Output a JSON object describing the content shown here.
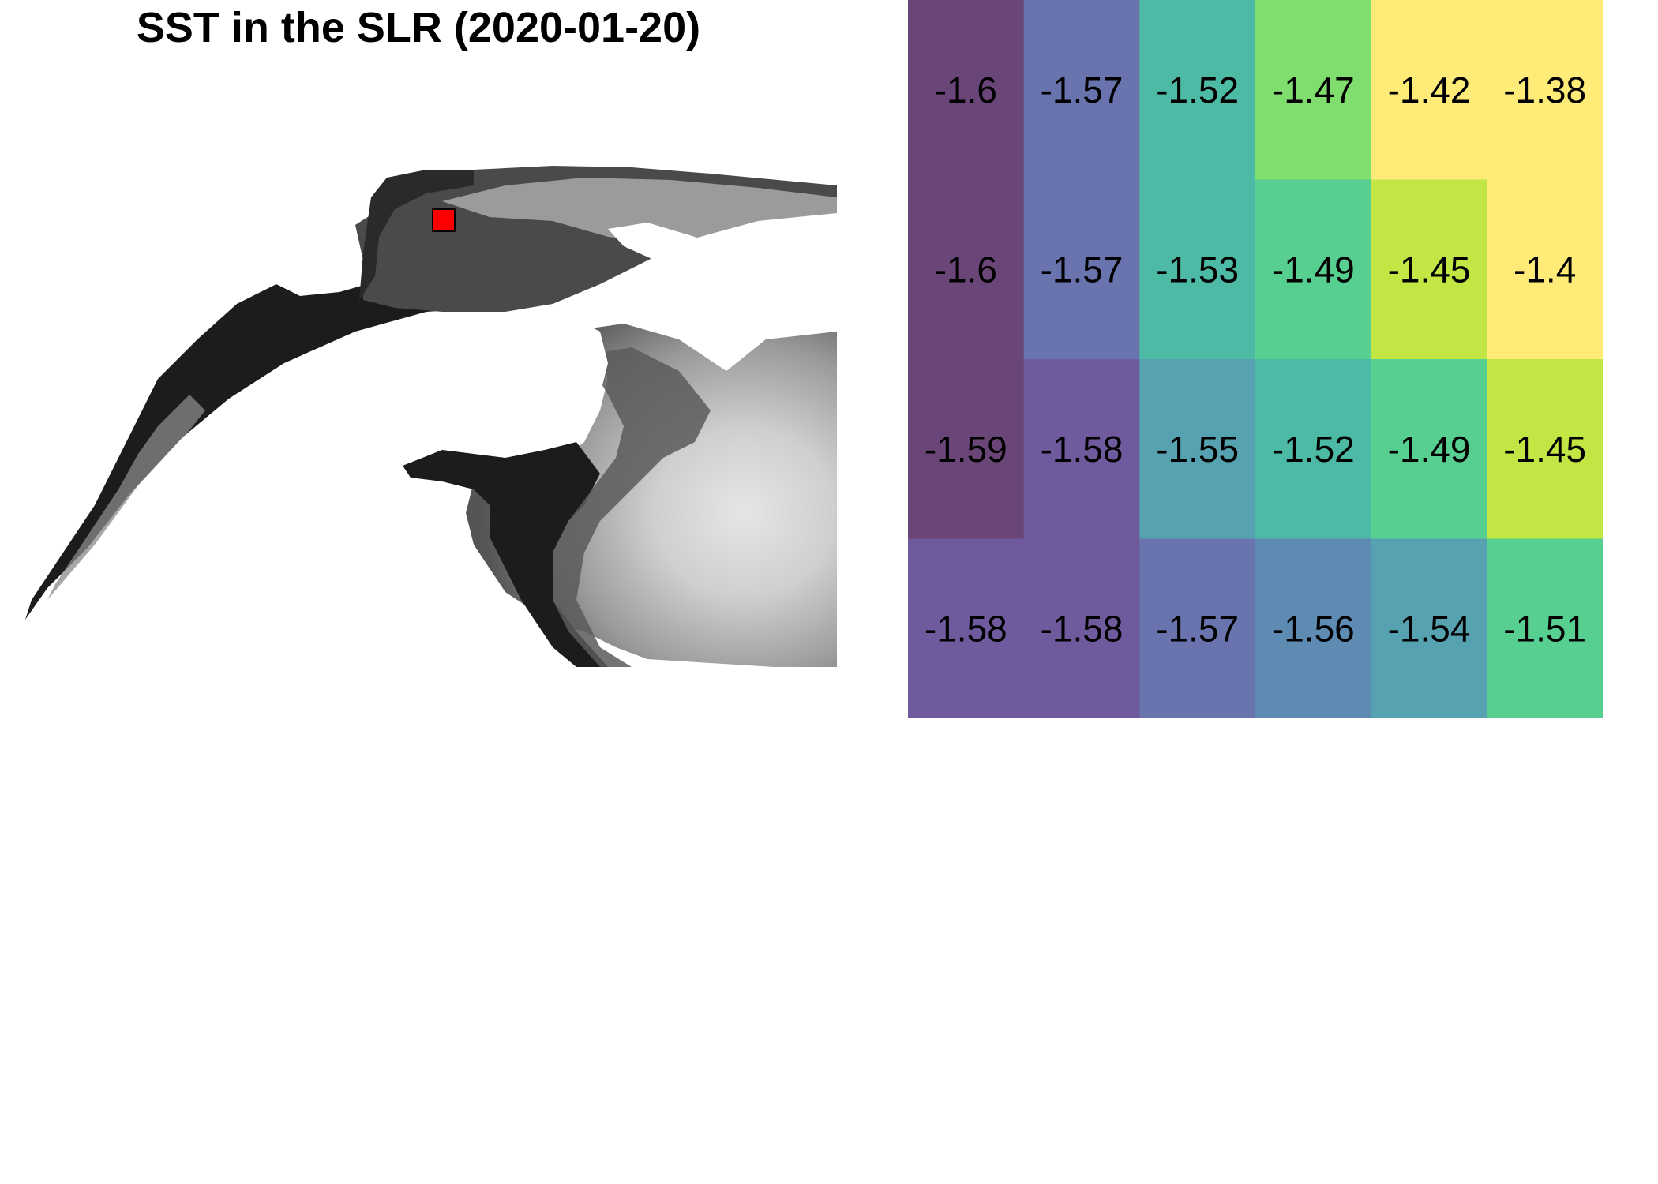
{
  "title": "SST in the SLR (2020-01-20)",
  "chart_data": {
    "type": "heatmap",
    "colormap": "viridis",
    "rows": [
      {
        "values": [
          -1.6,
          -1.57,
          -1.52,
          -1.47,
          -1.42,
          -1.38
        ],
        "labels": [
          "-1.6",
          "-1.57",
          "-1.52",
          "-1.47",
          "-1.42",
          "-1.38"
        ],
        "colors": [
          "#6A4577",
          "#6974AE",
          "#4DBAA5",
          "#80DE6E",
          "#FEEB78",
          "#FEEB78"
        ]
      },
      {
        "values": [
          -1.6,
          -1.57,
          -1.53,
          -1.49,
          -1.45,
          -1.4
        ],
        "labels": [
          "-1.6",
          "-1.57",
          "-1.53",
          "-1.49",
          "-1.45",
          "-1.4"
        ],
        "colors": [
          "#6A4577",
          "#6974AE",
          "#4DBAA5",
          "#57CF90",
          "#C2E744",
          "#FEEB78"
        ]
      },
      {
        "values": [
          -1.59,
          -1.58,
          -1.55,
          -1.52,
          -1.49,
          -1.45
        ],
        "labels": [
          "-1.59",
          "-1.58",
          "-1.55",
          "-1.52",
          "-1.49",
          "-1.45"
        ],
        "colors": [
          "#6A4577",
          "#705A9E",
          "#56A2B0",
          "#4DBAA5",
          "#57CF90",
          "#C2E744"
        ]
      },
      {
        "values": [
          -1.58,
          -1.58,
          -1.57,
          -1.56,
          -1.54,
          -1.51
        ],
        "labels": [
          "-1.58",
          "-1.58",
          "-1.57",
          "-1.56",
          "-1.54",
          "-1.51"
        ],
        "colors": [
          "#705A9E",
          "#705A9E",
          "#6974AE",
          "#5E8BB2",
          "#56A2B0",
          "#57CF90"
        ]
      }
    ]
  },
  "map": {
    "land_color": "#ffffff",
    "marker_color": "#ff0000",
    "shade_dark": "#1c1c1c",
    "shade_mid": "#8a8a8a",
    "shade_light": "#e6e6e6"
  }
}
